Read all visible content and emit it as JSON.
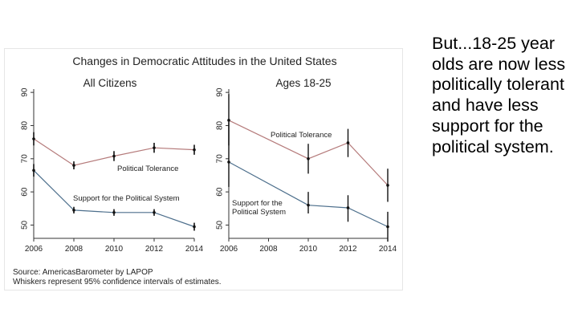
{
  "colors": {
    "tolerance_line": "#b57b7b",
    "support_line": "#4d6f8c",
    "axis": "#333333",
    "text": "#222222",
    "side_text": "#000000"
  },
  "side_text": "But...18-25 year olds are now less politically tolerant and have less support for the political system.",
  "chart_data": {
    "type": "line",
    "title": "Changes in Democratic Attitudes in the United States",
    "source_note": "Source: AmericasBarometer by LAPOP",
    "whiskers_note": "Whiskers represent 95% confidence intervals of estimates.",
    "panels": [
      {
        "subtitle": "All Citizens",
        "x": [
          2006,
          2008,
          2010,
          2012,
          2014
        ],
        "xticks": [
          "2006",
          "2008",
          "2010",
          "2012",
          "2014"
        ],
        "yticks": [
          "50",
          "60",
          "70",
          "80",
          "90"
        ],
        "ylim": [
          46,
          91
        ],
        "series": [
          {
            "name": "Political Tolerance",
            "values": [
              76,
              68,
              70.8,
              73.3,
              72.7
            ],
            "ci_low": [
              74,
              66.8,
              69.3,
              71.8,
              71.2
            ],
            "ci_high": [
              78,
              69.2,
              72.3,
              74.8,
              74.2
            ]
          },
          {
            "name": "Support for the Political System",
            "values": [
              66.5,
              54.5,
              53.8,
              53.8,
              49.5
            ],
            "ci_low": [
              64.6,
              53.5,
              52.8,
              52.8,
              48.3
            ],
            "ci_high": [
              68.4,
              55.5,
              54.8,
              54.8,
              50.7
            ]
          }
        ]
      },
      {
        "subtitle": "Ages 18-25",
        "x": [
          2006,
          2010,
          2012,
          2014
        ],
        "xticks": [
          "2006",
          "2008",
          "2010",
          "2012",
          "2014"
        ],
        "yticks": [
          "50",
          "60",
          "70",
          "80",
          "90"
        ],
        "ylim": [
          46,
          91
        ],
        "series": [
          {
            "name": "Political Tolerance",
            "values": [
              81.6,
              70,
              74.8,
              62
            ],
            "ci_low": [
              74,
              65.5,
              70.5,
              57
            ],
            "ci_high": [
              89.5,
              74.5,
              79,
              67
            ]
          },
          {
            "name": "Support for the Political System",
            "values": [
              69,
              56,
              55.2,
              49.5
            ],
            "ci_low": [
              61.5,
              53.5,
              51,
              45
            ],
            "ci_high": [
              81,
              60,
              59,
              54
            ]
          }
        ]
      }
    ]
  }
}
